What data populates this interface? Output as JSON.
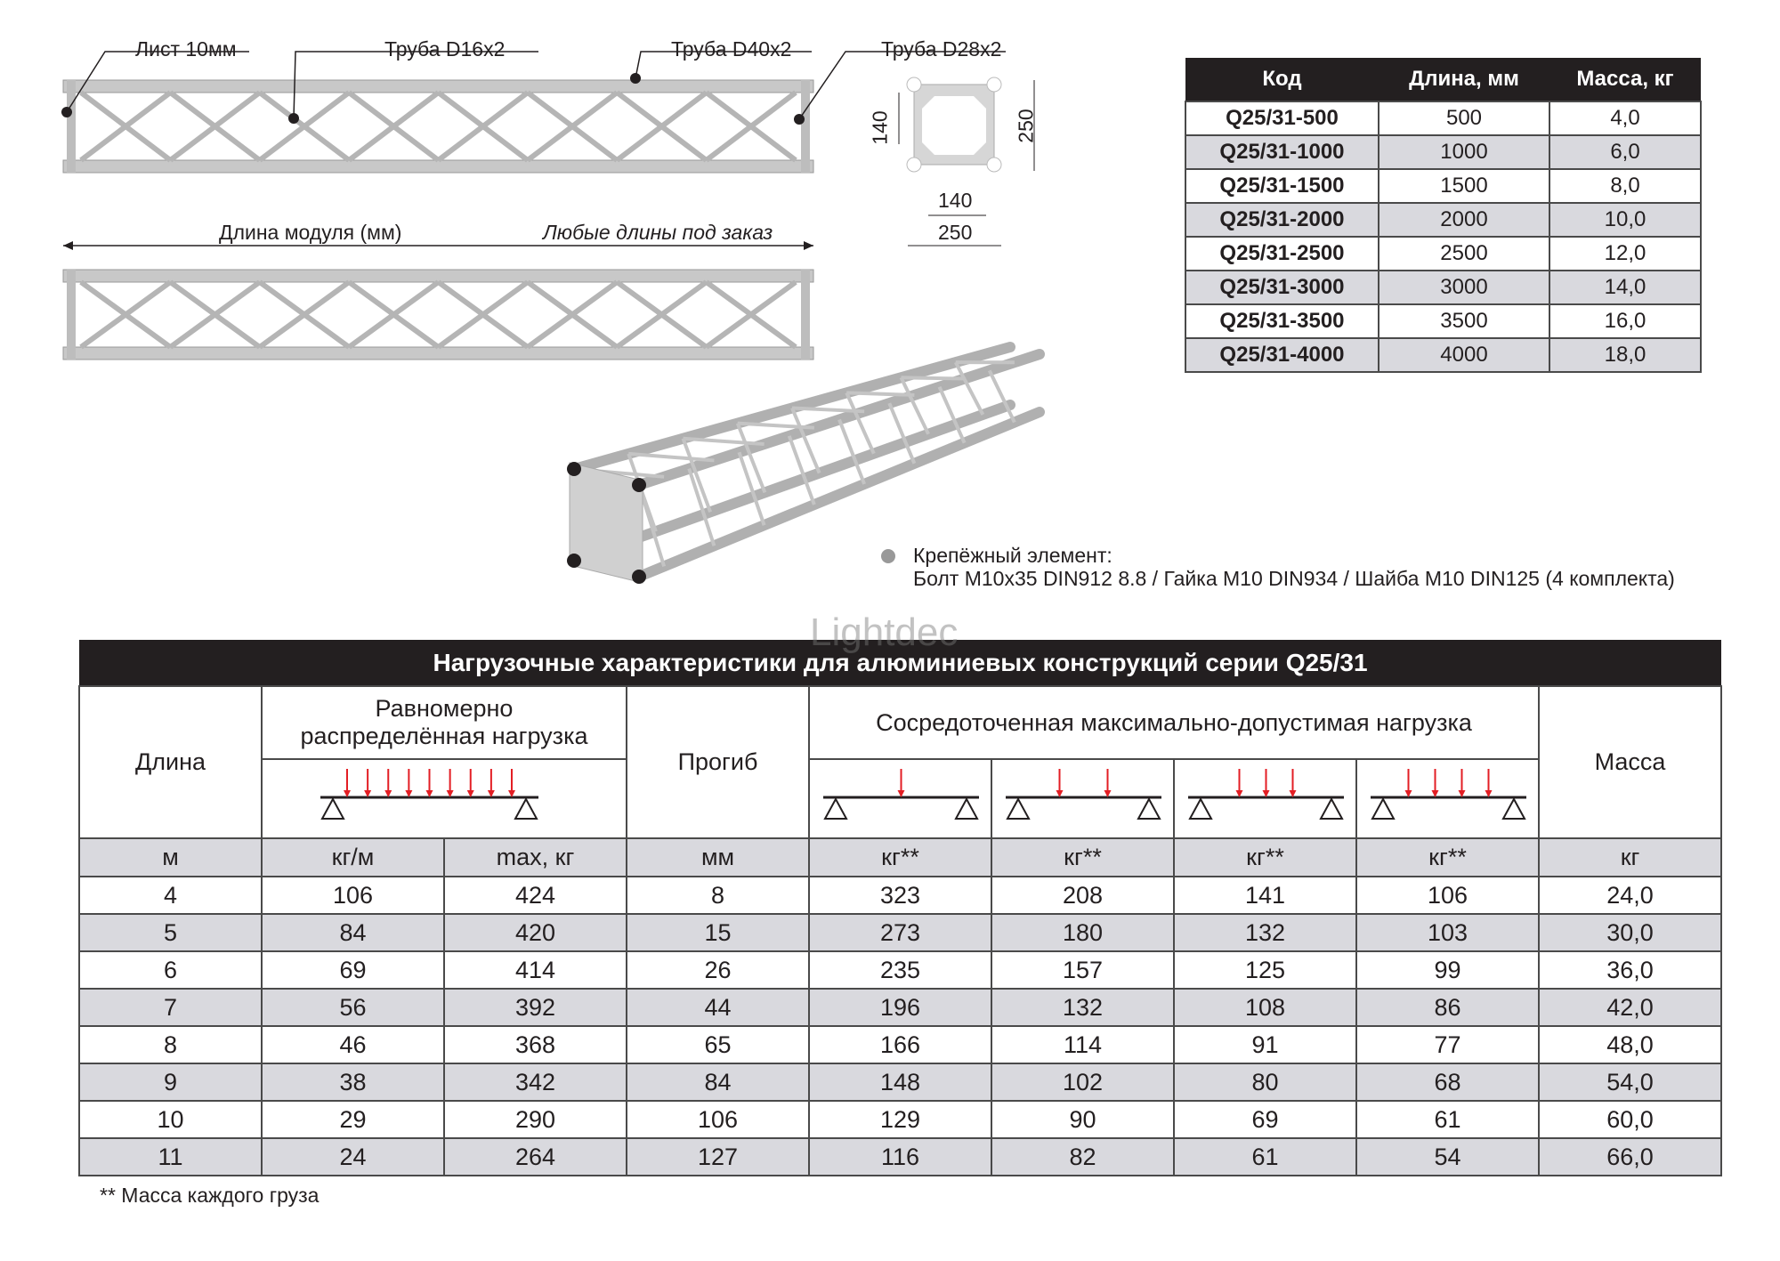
{
  "drawing": {
    "labels": {
      "sheet": "Лист 10мм",
      "tube_d16": "Труба D16x2",
      "tube_d40": "Труба D40x2",
      "tube_d28": "Труба D28x2",
      "module_length": "Длина модуля (мм)",
      "any_length": "Любые длины под заказ"
    },
    "cross_section": {
      "inner_v": "140",
      "outer_v": "250",
      "inner_h": "140",
      "outer_h": "250"
    },
    "fastener": {
      "title": "Крепёжный элемент:",
      "text": "Болт M10x35 DIN912 8.8 / Гайка M10 DIN934 / Шайба M10 DIN125 (4 комплекта)"
    },
    "watermark": "Lightdec"
  },
  "spec_table": {
    "headers": [
      "Код",
      "Длина, мм",
      "Масса, кг"
    ],
    "rows": [
      [
        "Q25/31-500",
        "500",
        "4,0"
      ],
      [
        "Q25/31-1000",
        "1000",
        "6,0"
      ],
      [
        "Q25/31-1500",
        "1500",
        "8,0"
      ],
      [
        "Q25/31-2000",
        "2000",
        "10,0"
      ],
      [
        "Q25/31-2500",
        "2500",
        "12,0"
      ],
      [
        "Q25/31-3000",
        "3000",
        "14,0"
      ],
      [
        "Q25/31-3500",
        "3500",
        "16,0"
      ],
      [
        "Q25/31-4000",
        "4000",
        "18,0"
      ]
    ]
  },
  "load_table": {
    "title": "Нагрузочные характеристики для алюминиевых конструкций серии Q25/31",
    "headers": {
      "length": "Длина",
      "uniform": "Равномерно распределённая нагрузка",
      "deflection": "Прогиб",
      "point": "Сосредоточенная максимально-допустимая нагрузка",
      "mass": "Масса"
    },
    "point_load_counts": [
      1,
      2,
      3,
      4
    ],
    "arrow_color": "#e31e24",
    "units": [
      "м",
      "кг/м",
      "max, кг",
      "мм",
      "кг**",
      "кг**",
      "кг**",
      "кг**",
      "кг"
    ],
    "rows": [
      [
        "4",
        "106",
        "424",
        "8",
        "323",
        "208",
        "141",
        "106",
        "24,0"
      ],
      [
        "5",
        "84",
        "420",
        "15",
        "273",
        "180",
        "132",
        "103",
        "30,0"
      ],
      [
        "6",
        "69",
        "414",
        "26",
        "235",
        "157",
        "125",
        "99",
        "36,0"
      ],
      [
        "7",
        "56",
        "392",
        "44",
        "196",
        "132",
        "108",
        "86",
        "42,0"
      ],
      [
        "8",
        "46",
        "368",
        "65",
        "166",
        "114",
        "91",
        "77",
        "48,0"
      ],
      [
        "9",
        "38",
        "342",
        "84",
        "148",
        "102",
        "80",
        "68",
        "54,0"
      ],
      [
        "10",
        "29",
        "290",
        "106",
        "129",
        "90",
        "69",
        "61",
        "60,0"
      ],
      [
        "11",
        "24",
        "264",
        "127",
        "116",
        "82",
        "61",
        "54",
        "66,0"
      ]
    ],
    "footnote": "** Масса каждого груза"
  }
}
